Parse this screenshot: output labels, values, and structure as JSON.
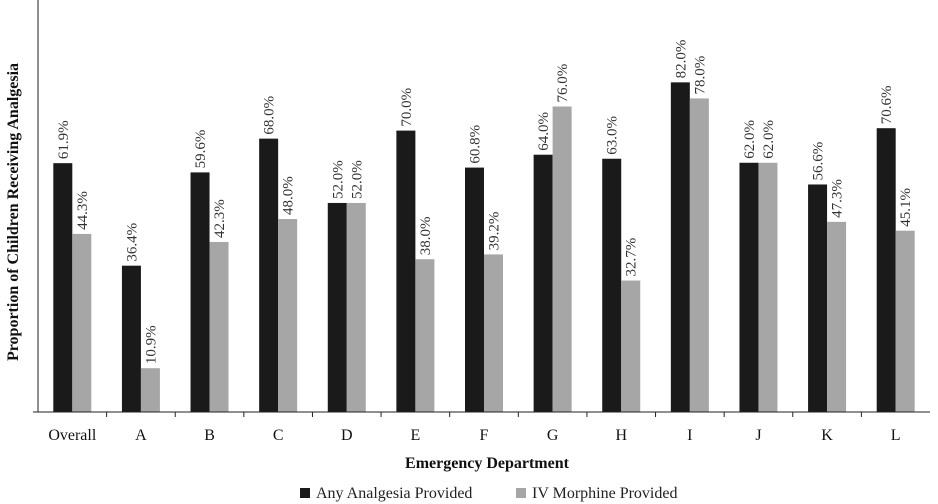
{
  "chart_data": {
    "type": "bar",
    "categories": [
      "Overall",
      "A",
      "B",
      "C",
      "D",
      "E",
      "F",
      "G",
      "H",
      "I",
      "J",
      "K",
      "L"
    ],
    "series": [
      {
        "name": "Any Analgesia Provided",
        "color": "#1a1a1a",
        "values": [
          61.9,
          36.4,
          59.6,
          68.0,
          52.0,
          70.0,
          60.8,
          64.0,
          63.0,
          82.0,
          62.0,
          56.6,
          70.6
        ],
        "labels": [
          "61.9%",
          "36.4%",
          "59.6%",
          "68.0%",
          "52.0%",
          "70.0%",
          "60.8%",
          "64.0%",
          "63.0%",
          "82.0%",
          "62.0%",
          "56.6%",
          "70.6%"
        ]
      },
      {
        "name": "IV Morphine Provided",
        "color": "#a6a6a6",
        "values": [
          44.3,
          10.9,
          42.3,
          48.0,
          52.0,
          38.0,
          39.2,
          76.0,
          32.7,
          78.0,
          62.0,
          47.3,
          45.1
        ],
        "labels": [
          "44.3%",
          "10.9%",
          "42.3%",
          "48.0%",
          "52.0%",
          "38.0%",
          "39.2%",
          "76.0%",
          "32.7%",
          "78.0%",
          "62.0%",
          "47.3%",
          "45.1%"
        ]
      }
    ],
    "xlabel": "Emergency Department",
    "ylabel": "Proportion of Children Receiving Analgesia",
    "ylim": [
      0,
      100
    ],
    "grid": false,
    "legend": "bottom-center"
  }
}
